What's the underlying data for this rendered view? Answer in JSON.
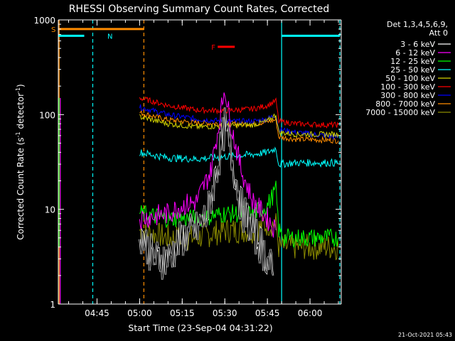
{
  "chart_data": {
    "type": "line",
    "title": "RHESSI Observing Summary Count Rates, Corrected",
    "xlabel": "Start Time (23-Sep-04 04:31:22)",
    "ylabel_parts": [
      "Corrected Count Rate (s",
      "-1",
      " detector",
      "-1",
      ")"
    ],
    "yscale": "log",
    "ylim": [
      1,
      1000
    ],
    "xlim": [
      "04:31:22",
      "06:11:00"
    ],
    "x_ticks": [
      "04:45",
      "05:00",
      "05:15",
      "05:30",
      "05:45",
      "06:00"
    ],
    "y_ticks": [
      "1",
      "10",
      "100",
      "1000"
    ],
    "grid": false,
    "legend_position": "right",
    "legend_header": [
      "Det 1,3,4,5,6,9,",
      "Att 0"
    ],
    "series": [
      {
        "name": "3 - 6 keV",
        "color": "#000000",
        "x": [
          "05:00",
          "05:05",
          "05:10",
          "05:15",
          "05:20",
          "05:24",
          "05:27",
          "05:29",
          "05:30",
          "05:31",
          "05:33",
          "05:36",
          "05:40",
          "05:45",
          "05:47"
        ],
        "values": [
          6,
          3,
          3,
          5,
          6,
          9,
          25,
          50,
          75,
          55,
          30,
          10,
          6,
          3,
          2
        ]
      },
      {
        "name": "6 - 12 keV",
        "color": "#ff00ff",
        "x": [
          "05:00",
          "05:10",
          "05:15",
          "05:20",
          "05:25",
          "05:28",
          "05:30",
          "05:31",
          "05:33",
          "05:36",
          "05:40",
          "05:45",
          "05:48"
        ],
        "values": [
          8,
          9,
          11,
          12,
          25,
          80,
          200,
          120,
          60,
          25,
          12,
          8,
          6
        ]
      },
      {
        "name": "12 - 25 keV",
        "color": "#00ff00",
        "x": [
          "05:00",
          "05:10",
          "05:20",
          "05:30",
          "05:40",
          "05:45",
          "05:48",
          "05:49",
          "05:51",
          "05:55",
          "06:00",
          "06:05",
          "06:10"
        ],
        "values": [
          9,
          8,
          8,
          9,
          9,
          11,
          16,
          6,
          5,
          5,
          5,
          5,
          5
        ]
      },
      {
        "name": "25 - 50 keV",
        "color": "#00ffff",
        "x": [
          "05:00",
          "05:10",
          "05:20",
          "05:30",
          "05:40",
          "05:45",
          "05:48",
          "05:49",
          "05:55",
          "06:05",
          "06:10"
        ],
        "values": [
          40,
          35,
          34,
          36,
          38,
          40,
          44,
          30,
          31,
          31,
          31
        ]
      },
      {
        "name": "50 - 100 keV",
        "color": "#d2d200",
        "x": [
          "05:00",
          "05:10",
          "05:20",
          "05:30",
          "05:40",
          "05:45",
          "05:48",
          "05:49",
          "05:55",
          "06:05",
          "06:10"
        ],
        "values": [
          95,
          80,
          74,
          76,
          78,
          85,
          100,
          65,
          62,
          62,
          62
        ]
      },
      {
        "name": "100 - 300 keV",
        "color": "#ff0000",
        "x": [
          "05:00",
          "05:10",
          "05:20",
          "05:30",
          "05:40",
          "05:45",
          "05:48",
          "05:49",
          "05:55",
          "06:05",
          "06:10"
        ],
        "values": [
          150,
          125,
          112,
          110,
          115,
          125,
          140,
          85,
          80,
          78,
          78
        ]
      },
      {
        "name": "300 - 800 keV",
        "color": "#0000ff",
        "x": [
          "05:00",
          "05:10",
          "05:20",
          "05:30",
          "05:40",
          "05:45",
          "05:48",
          "05:49",
          "05:55",
          "06:05",
          "06:10"
        ],
        "values": [
          120,
          100,
          90,
          85,
          85,
          90,
          100,
          70,
          65,
          60,
          58
        ]
      },
      {
        "name": "800 - 7000 keV",
        "color": "#ff8c00",
        "x": [
          "05:00",
          "05:10",
          "05:20",
          "05:30",
          "05:40",
          "05:45",
          "05:48",
          "05:49",
          "05:55",
          "06:05",
          "06:10"
        ],
        "values": [
          105,
          88,
          82,
          80,
          80,
          84,
          88,
          58,
          55,
          54,
          53
        ]
      },
      {
        "name": "7000 - 15000 keV",
        "color": "#8c8c00",
        "x": [
          "05:00",
          "05:10",
          "05:20",
          "05:30",
          "05:40",
          "05:45",
          "05:48",
          "05:49",
          "05:55",
          "06:05",
          "06:10"
        ],
        "values": [
          6,
          5,
          5,
          6,
          6,
          7,
          7,
          4,
          4,
          4,
          4
        ]
      }
    ],
    "spikes": [
      {
        "x": "04:31:40",
        "y": [
          4,
          150
        ],
        "color": "#00ff00"
      },
      {
        "x": "04:31:40",
        "y": [
          1,
          150
        ],
        "color": "#ff00ff"
      }
    ],
    "annotation_bars": [
      {
        "label": "S",
        "x": [
          "04:31:22",
          "05:01:30"
        ],
        "y": 800,
        "color": "#ff8c00"
      },
      {
        "label": "N",
        "x": [
          "04:31:22",
          "04:40:30"
        ],
        "y": 680,
        "color": "#00ffff"
      },
      {
        "label": "N",
        "x": [
          "05:50:00",
          "06:10:30"
        ],
        "y": 680,
        "color": "#00ffff"
      },
      {
        "label": "F",
        "x": [
          "05:27:30",
          "05:33:30"
        ],
        "y": 520,
        "color": "#ff0000"
      }
    ],
    "vertical_lines": [
      {
        "x": "04:31:40",
        "style": "solid",
        "color": "#ff8c00"
      },
      {
        "x": "04:43:30",
        "style": "dashed",
        "color": "#00ffff"
      },
      {
        "x": "05:01:30",
        "style": "dashed",
        "color": "#ff8c00"
      },
      {
        "x": "05:50:00",
        "style": "solid",
        "color": "#00ffff"
      },
      {
        "x": "06:10:30",
        "style": "dashed",
        "color": "#00ffff"
      }
    ]
  },
  "footer_timestamp": "21-Oct-2021 05:43"
}
